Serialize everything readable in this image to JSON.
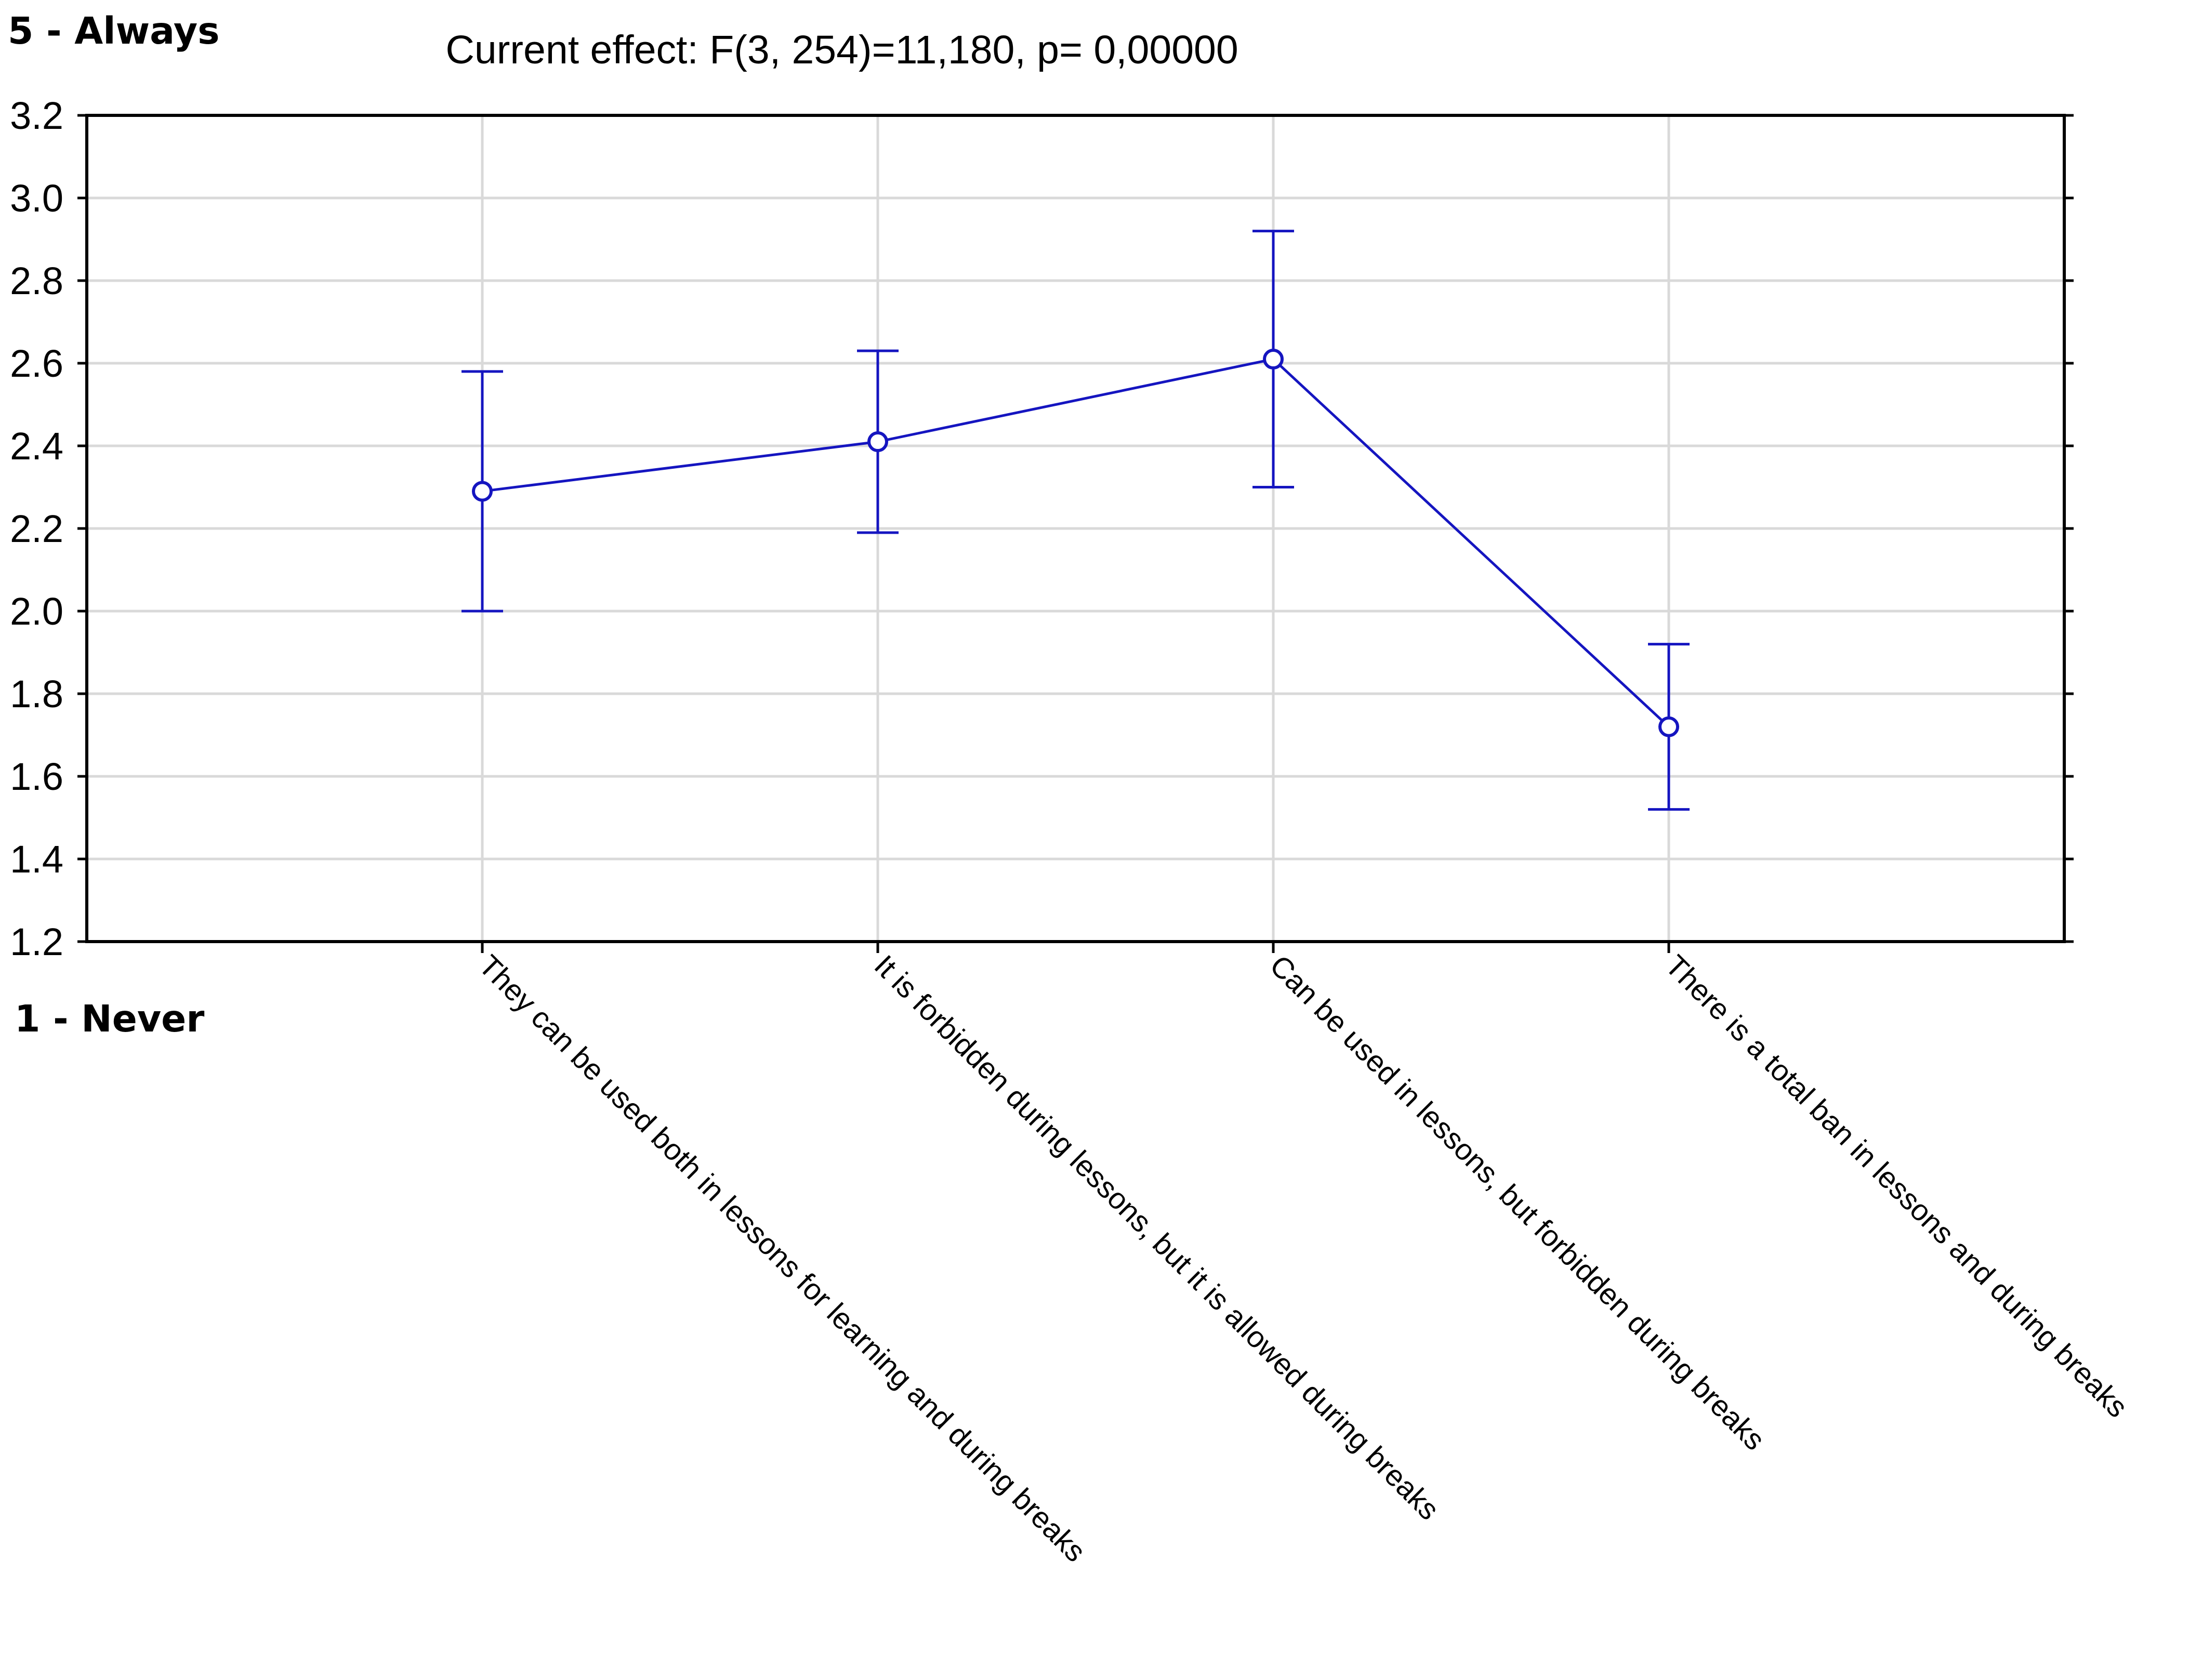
{
  "labels": {
    "top": "5 - Always",
    "bottom": "1 - Never"
  },
  "chart_data": {
    "type": "line",
    "title": "Current effect: F(3, 254)=11,180, p= 0,00000",
    "xlabel": "",
    "ylabel": "",
    "ylim": [
      1.2,
      3.2
    ],
    "yticks": [
      "3.2",
      "3.0",
      "2.8",
      "2.6",
      "2.4",
      "2.2",
      "2.0",
      "1.8",
      "1.6",
      "1.4",
      "1.2"
    ],
    "grid": true,
    "categories": [
      "They can be used both in lessons for learning and during breaks",
      "It is forbidden during lessons, but it is allowed during breaks",
      "Can be used in lessons, but forbidden during breaks",
      "There is a total ban in lessons and during breaks"
    ],
    "series": [
      {
        "values": [
          2.29,
          2.41,
          2.61,
          1.72
        ],
        "error_low": [
          2.0,
          2.19,
          2.3,
          1.52
        ],
        "error_high": [
          2.58,
          2.63,
          2.92,
          1.92
        ],
        "color": "#1515c0"
      }
    ]
  }
}
